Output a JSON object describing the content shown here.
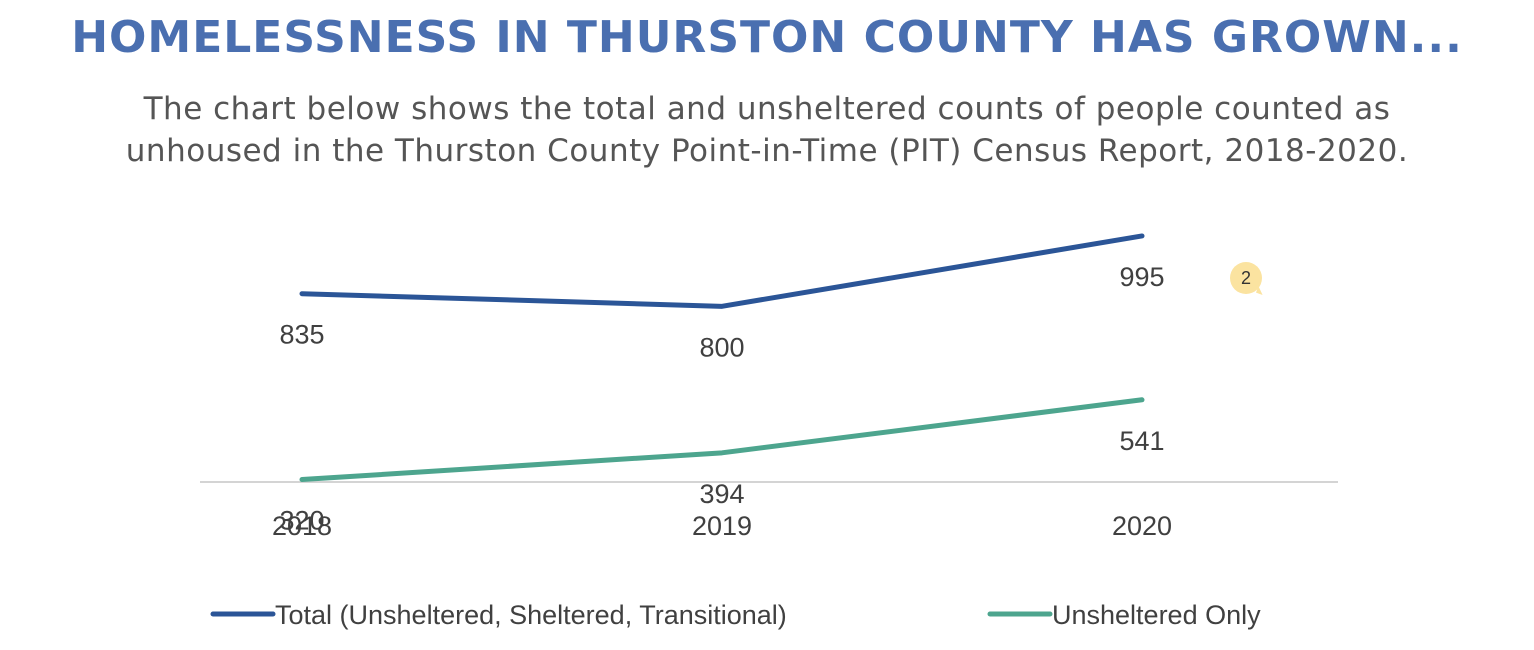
{
  "title": "HOMELESSNESS IN THURSTON COUNTY HAS GROWN...",
  "subtitle_lines": [
    "The chart below shows the total and unsheltered counts of people counted as",
    "unhoused in the Thurston County Point-in-Time (PIT) Census Report, 2018-2020."
  ],
  "badge": "2",
  "colors": {
    "title": "#4a6fb0",
    "subtitle": "#555555",
    "total": "#2b5597",
    "unsheltered": "#4da58e",
    "axis": "#d4d4d4",
    "label": "#404040"
  },
  "chart_data": {
    "type": "line",
    "categories": [
      "2018",
      "2019",
      "2020"
    ],
    "series": [
      {
        "name": "Total (Unsheltered, Sheltered, Transitional)",
        "values": [
          835,
          800,
          995
        ],
        "color": "#2b5597"
      },
      {
        "name": "Unsheltered Only",
        "values": [
          320,
          394,
          541
        ],
        "color": "#4da58e"
      }
    ],
    "ylim": [
      0,
      1200
    ],
    "grid": false,
    "data_labels": true,
    "legend": "bottom",
    "title": "",
    "xlabel": "",
    "ylabel": ""
  }
}
